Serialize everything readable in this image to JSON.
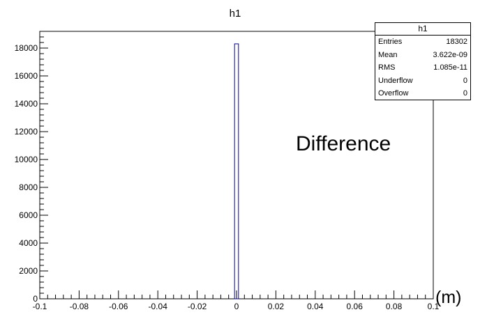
{
  "chart_data": {
    "type": "bar",
    "title": "h1",
    "xlabel": "(m)",
    "ylabel": "",
    "xlim": [
      -0.1,
      0.1
    ],
    "ylim": [
      0,
      19200
    ],
    "x_ticks": [
      "-0.1",
      "-0.08",
      "-0.06",
      "-0.04",
      "-0.02",
      "0",
      "0.02",
      "0.04",
      "0.06",
      "0.08",
      "0.1"
    ],
    "x_tick_values": [
      -0.1,
      -0.08,
      -0.06,
      -0.04,
      -0.02,
      0,
      0.02,
      0.04,
      0.06,
      0.08,
      0.1
    ],
    "y_ticks": [
      "0",
      "2000",
      "4000",
      "6000",
      "8000",
      "10000",
      "12000",
      "14000",
      "16000",
      "18000"
    ],
    "y_tick_values": [
      0,
      2000,
      4000,
      6000,
      8000,
      10000,
      12000,
      14000,
      16000,
      18000
    ],
    "bins": [
      {
        "x_low": -0.001,
        "x_high": 0.001,
        "value": 18302
      }
    ],
    "annotation": "Difference",
    "bar_color": "#000099",
    "grid": false
  },
  "stats_box": {
    "title": "h1",
    "rows": [
      {
        "label": "Entries",
        "value": "18302"
      },
      {
        "label": "Mean",
        "value": "3.622e-09"
      },
      {
        "label": "RMS",
        "value": "1.085e-11"
      },
      {
        "label": "Underflow",
        "value": "0"
      },
      {
        "label": "Overflow",
        "value": "0"
      }
    ]
  }
}
